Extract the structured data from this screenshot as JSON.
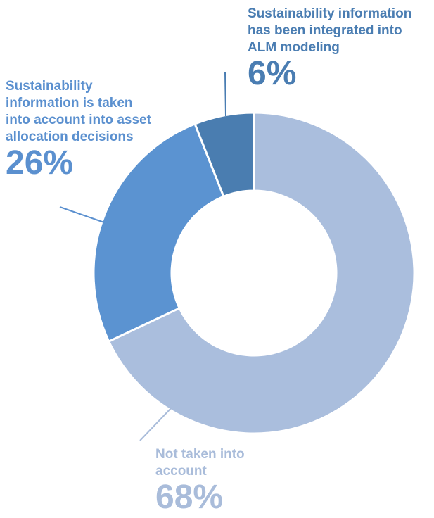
{
  "chart_data": {
    "type": "pie",
    "donut": true,
    "slices": [
      {
        "label": "Not taken into\naccount",
        "value": 68,
        "display": "68%",
        "color": "#aabedd",
        "label_color": "#a9bcda"
      },
      {
        "label": "Sustainability\ninformation is taken\ninto account into asset\nallocation decisions",
        "value": 26,
        "display": "26%",
        "color": "#5b93d1",
        "label_color": "#5b90cf"
      },
      {
        "label": "Sustainability information\nhas been integrated into\nALM modeling",
        "value": 6,
        "display": "6%",
        "color": "#4a7db0",
        "label_color": "#4a7db2"
      }
    ]
  }
}
